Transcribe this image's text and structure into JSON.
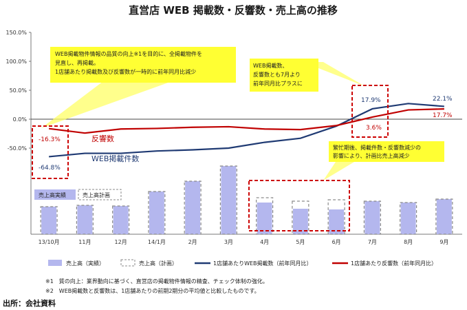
{
  "title": "直営店 WEB 掲載数・反響数・売上高の推移",
  "source": "出所：会社資料",
  "notes": [
    "※1　質の向上：業界動向に基づく、直営店の掲載物件情報の精査、チェック体制の強化。",
    "※2　WEB掲載数と反響数は、1店舗あたりの前期2期分の平均値と比較したものです。"
  ],
  "annotations": {
    "box1": [
      "WEB掲載物件情報の品質の向上※1を目的に、全掲載物件を",
      "見直し、再掲載。",
      "1店舗あたり掲載数及び反響数が一時的に前年同月比減少"
    ],
    "box2": [
      "WEB掲載数、",
      "反響数とも7月より",
      "前年同月比プラスに"
    ],
    "box3": [
      "繁忙期後、掲載件数・反響数減少の",
      "影響により、計画比売上高減少"
    ]
  },
  "inline_legend": {
    "actual": "売上高実績",
    "plan": "売上高計画"
  },
  "chart_data": {
    "type": "bar",
    "categories": [
      "13/10月",
      "11月",
      "12月",
      "14/1月",
      "2月",
      "3月",
      "4月",
      "5月",
      "6月",
      "7月",
      "8月",
      "9月"
    ],
    "y_ticks": [
      "150.0%",
      "100.0%",
      "50.0%",
      "0.0%",
      "-50.0%"
    ],
    "ylim": [
      -50,
      150
    ],
    "series": [
      {
        "name": "売上高（実績）",
        "kind": "bar",
        "values": [
          40,
          42,
          41,
          62,
          77,
          99,
          46,
          37,
          36,
          48,
          46,
          51
        ]
      },
      {
        "name": "売上高（計画）",
        "kind": "bar-outline",
        "values": [
          40,
          42,
          41,
          62,
          77,
          99,
          53,
          48,
          50,
          48,
          46,
          51
        ]
      },
      {
        "name": "1店舗あたりWEB掲載数（前年同月比）",
        "kind": "line",
        "color": "#1f3a73",
        "values": [
          -64.8,
          -59,
          -59,
          -55,
          -53,
          -50,
          -40,
          -33,
          -12,
          17.9,
          27,
          22.1
        ]
      },
      {
        "name": "1店舗あたり反響数（前年同月比）",
        "kind": "line",
        "color": "#c00000",
        "values": [
          -16.3,
          -24,
          -17,
          -16,
          -14,
          -13,
          -17,
          -18,
          -11,
          3.6,
          16,
          17.7
        ]
      }
    ],
    "data_labels": {
      "web_first": "-64.8%",
      "react_first": "-16.3%",
      "web_jul": "17.9%",
      "react_jul": "3.6%",
      "web_last": "22.1%",
      "react_last": "17.7%"
    },
    "series_labels": {
      "web": "WEB掲載件数",
      "react": "反響数"
    },
    "colors": {
      "bar": "#b4b7ee",
      "blue_line": "#1f3a73",
      "red_line": "#c00000",
      "highlight": "#cc0000"
    }
  }
}
